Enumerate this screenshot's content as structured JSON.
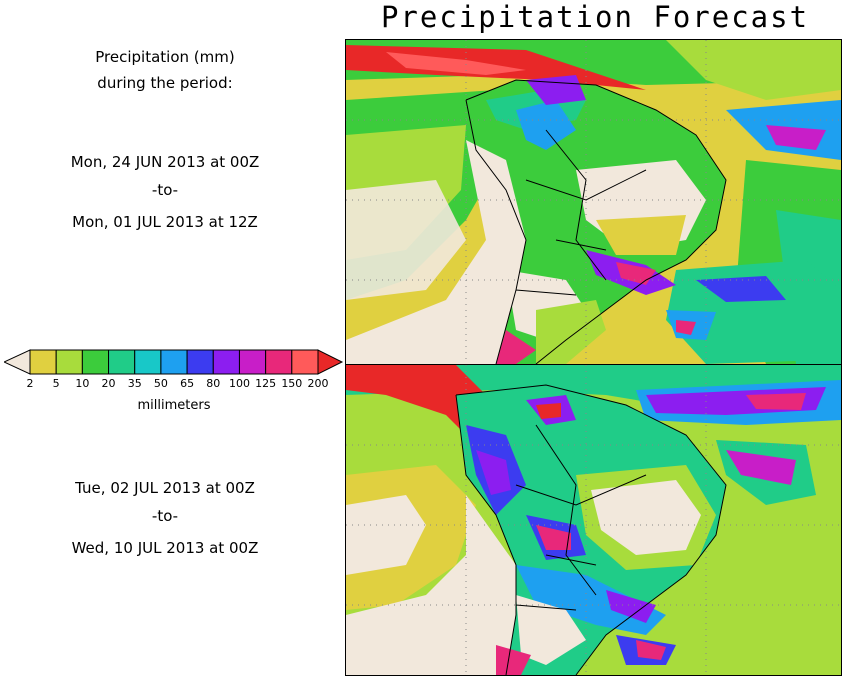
{
  "title": "Precipitation Forecast",
  "left_panel": {
    "header_line1": "Precipitation (mm)",
    "header_line2": "during the period:",
    "period1": {
      "start": "Mon, 24 JUN 2013 at 00Z",
      "sep": "-to-",
      "end": "Mon, 01 JUL 2013 at 12Z"
    },
    "period2": {
      "start": "Tue, 02 JUL 2013 at 00Z",
      "sep": "-to-",
      "end": "Wed, 10 JUL 2013 at 00Z"
    }
  },
  "legend": {
    "unit": "millimeters",
    "ticks": [
      "2",
      "5",
      "10",
      "20",
      "35",
      "50",
      "65",
      "80",
      "100",
      "125",
      "150",
      "200"
    ],
    "colors": [
      "#f2e8dc",
      "#e0d040",
      "#a8dc3c",
      "#3ccc3c",
      "#20cc88",
      "#18c8c8",
      "#1ea0f0",
      "#3c3cf0",
      "#8c1ef0",
      "#c81ec8",
      "#e8287a",
      "#ff5a5a",
      "#e82828"
    ]
  },
  "colors": {
    "land_dry": "#f2e8dc",
    "ocean_dry": "#e0d040",
    "border": "#000000"
  }
}
